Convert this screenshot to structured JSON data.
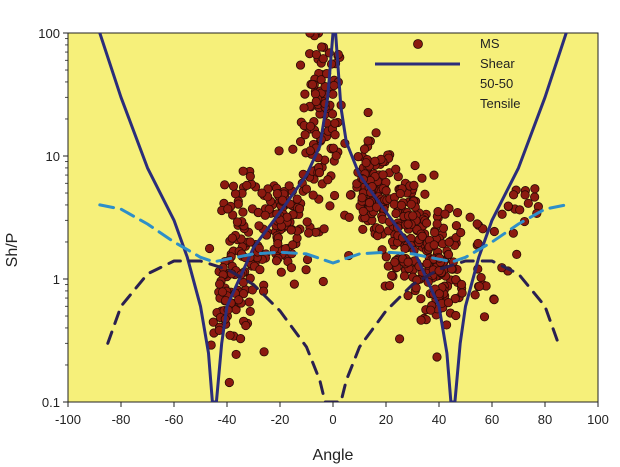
{
  "chart_data": {
    "type": "scatter",
    "xlabel": "Angle",
    "ylabel": "Sh/P",
    "xlim": [
      -100,
      100
    ],
    "ylim": [
      0.1,
      100
    ],
    "yscale": "log",
    "xticks": [
      "-100",
      "-80",
      "-60",
      "-40",
      "-20",
      "0",
      "20",
      "40",
      "60",
      "80",
      "100"
    ],
    "yticks": [
      "0.1",
      "1",
      "10",
      "100"
    ],
    "grid": false,
    "legend_position": "top-right",
    "colors": {
      "plot_background": "#f6f07a",
      "ms_points": "#8b1a10",
      "shear": "#2b2d7a",
      "fifty_fifty": "#2e8fc8",
      "tensile": "#2a2050"
    },
    "series": [
      {
        "name": "MS",
        "kind": "points",
        "clusters": [
          {
            "x_center": -4,
            "y_center": 20,
            "sx": 4,
            "slog": 0.35,
            "count": 110
          },
          {
            "x_center": -20,
            "y_center": 3.0,
            "sx": 6,
            "slog": 0.25,
            "count": 120
          },
          {
            "x_center": -35,
            "y_center": 1.5,
            "sx": 4,
            "slog": 0.3,
            "count": 90
          },
          {
            "x_center": -42,
            "y_center": 0.55,
            "sx": 2,
            "slog": 0.15,
            "count": 25
          },
          {
            "x_center": 15,
            "y_center": 5.0,
            "sx": 4,
            "slog": 0.2,
            "count": 110
          },
          {
            "x_center": 28,
            "y_center": 2.5,
            "sx": 5,
            "slog": 0.22,
            "count": 140
          },
          {
            "x_center": 40,
            "y_center": 1.2,
            "sx": 4,
            "slog": 0.25,
            "count": 110
          },
          {
            "x_center": 55,
            "y_center": 1.5,
            "sx": 6,
            "slog": 0.25,
            "count": 30
          },
          {
            "x_center": 70,
            "y_center": 4.0,
            "sx": 6,
            "slog": 0.12,
            "count": 15
          }
        ]
      },
      {
        "name": "Shear",
        "kind": "solid-line",
        "points": [
          [
            -88,
            100
          ],
          [
            -80,
            30
          ],
          [
            -70,
            8
          ],
          [
            -60,
            3.0
          ],
          [
            -55,
            1.5
          ],
          [
            -50,
            0.6
          ],
          [
            -47,
            0.25
          ],
          [
            -45.5,
            0.1
          ],
          [
            -44,
            0.1
          ],
          [
            -42,
            0.3
          ],
          [
            -40,
            0.6
          ],
          [
            -30,
            1.8
          ],
          [
            -20,
            3.5
          ],
          [
            -10,
            7
          ],
          [
            -5,
            12
          ],
          [
            -2,
            30
          ],
          [
            0,
            100
          ],
          [
            1,
            100
          ],
          [
            3,
            25
          ],
          [
            5,
            13
          ],
          [
            10,
            7
          ],
          [
            20,
            3.5
          ],
          [
            30,
            1.8
          ],
          [
            40,
            0.6
          ],
          [
            43,
            0.25
          ],
          [
            44.5,
            0.1
          ],
          [
            46,
            0.1
          ],
          [
            48,
            0.3
          ],
          [
            50,
            0.6
          ],
          [
            55,
            1.5
          ],
          [
            60,
            3.0
          ],
          [
            70,
            8
          ],
          [
            80,
            30
          ],
          [
            88,
            100
          ]
        ]
      },
      {
        "name": "50-50",
        "kind": "dashed-line",
        "points": [
          [
            -88,
            4.0
          ],
          [
            -80,
            3.7
          ],
          [
            -70,
            2.8
          ],
          [
            -60,
            2.0
          ],
          [
            -50,
            1.5
          ],
          [
            -45,
            1.38
          ],
          [
            -40,
            1.45
          ],
          [
            -30,
            1.6
          ],
          [
            -20,
            1.65
          ],
          [
            -10,
            1.6
          ],
          [
            0,
            1.35
          ],
          [
            10,
            1.6
          ],
          [
            20,
            1.65
          ],
          [
            30,
            1.6
          ],
          [
            40,
            1.45
          ],
          [
            45,
            1.38
          ],
          [
            50,
            1.5
          ],
          [
            60,
            2.0
          ],
          [
            70,
            2.8
          ],
          [
            80,
            3.7
          ],
          [
            88,
            4.0
          ]
        ]
      },
      {
        "name": "Tensile",
        "kind": "dashed-line",
        "points": [
          [
            -85,
            0.3
          ],
          [
            -80,
            0.6
          ],
          [
            -70,
            1.1
          ],
          [
            -60,
            1.4
          ],
          [
            -50,
            1.4
          ],
          [
            -40,
            1.2
          ],
          [
            -30,
            0.9
          ],
          [
            -20,
            0.55
          ],
          [
            -10,
            0.28
          ],
          [
            -5,
            0.15
          ],
          [
            -3,
            0.1
          ],
          [
            3,
            0.1
          ],
          [
            5,
            0.15
          ],
          [
            10,
            0.28
          ],
          [
            20,
            0.55
          ],
          [
            30,
            0.9
          ],
          [
            40,
            1.2
          ],
          [
            50,
            1.4
          ],
          [
            60,
            1.4
          ],
          [
            70,
            1.1
          ],
          [
            80,
            0.6
          ],
          [
            85,
            0.3
          ]
        ]
      }
    ],
    "legend": [
      "MS",
      "Shear",
      "50-50",
      "Tensile"
    ]
  }
}
